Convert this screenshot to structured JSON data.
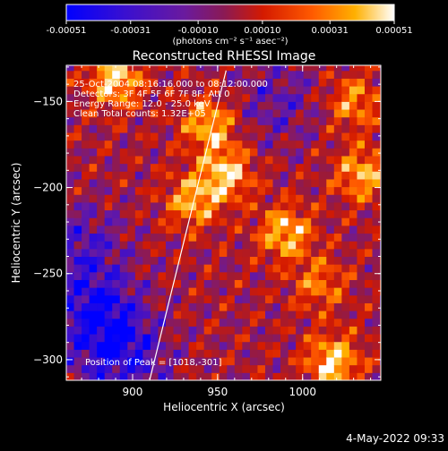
{
  "colorbar": {
    "tick_labels": [
      "-0.00051",
      "-0.00031",
      "-0.00010",
      "0.00010",
      "0.00031",
      "0.00051"
    ],
    "tick_values": [
      -0.00051,
      -0.00031,
      -0.0001,
      0.0001,
      0.00031,
      0.00051
    ],
    "range": [
      -0.00051,
      0.00051
    ],
    "units_label": "(photons cm⁻² s⁻¹ asec⁻²)",
    "colormap": [
      "#0000ff",
      "#4010c8",
      "#6a1a9e",
      "#9a1a3a",
      "#d41a00",
      "#ff5a00",
      "#ffb000",
      "#ffffff"
    ]
  },
  "annotations": {
    "time_range": "25-Oct-2004 08:16:16.000 to 08:12:00.000",
    "detectors": "Detectors: 3F 4F 5F 6F 7F 8F; Att 0",
    "energy_range": "Energy Range: 12.0 - 25.0 keV",
    "clean_counts": "Clean     Total counts: 1.32E+05",
    "peak": "Position of Peak = [1018,-301]"
  },
  "timestamp": "4-May-2022 09:33",
  "chart_data": {
    "type": "heatmap",
    "title": "Reconstructed RHESSI Image",
    "xlabel": "Heliocentric X (arcsec)",
    "ylabel": "Heliocentric Y (arcsec)",
    "xlim": [
      861,
      1046
    ],
    "ylim": [
      -312,
      -129
    ],
    "x_ticks": [
      900,
      950,
      1000
    ],
    "y_ticks": [
      -150,
      -200,
      -250,
      -300
    ],
    "x_tick_labels": [
      "900",
      "950",
      "1000"
    ],
    "y_tick_labels": [
      "−150",
      "−200",
      "−250",
      "−300"
    ],
    "peak_position": [
      1018,
      -301
    ],
    "limb_line": [
      [
        910,
        -312
      ],
      [
        955,
        -132
      ]
    ],
    "bright_sources": [
      {
        "x": 890,
        "y": -137,
        "value": 0.00051
      },
      {
        "x": 945,
        "y": -163,
        "value": 0.00045
      },
      {
        "x": 955,
        "y": -192,
        "value": 0.00048
      },
      {
        "x": 935,
        "y": -208,
        "value": 0.0004
      },
      {
        "x": 990,
        "y": -226,
        "value": 0.00046
      },
      {
        "x": 1035,
        "y": -192,
        "value": 0.00042
      },
      {
        "x": 1030,
        "y": -150,
        "value": 0.00035
      },
      {
        "x": 1010,
        "y": -256,
        "value": 0.0003
      },
      {
        "x": 1018,
        "y": -301,
        "value": 0.00051
      }
    ],
    "dim_regions": [
      {
        "x": 880,
        "y": -275,
        "value": -0.0004
      },
      {
        "x": 895,
        "y": -300,
        "value": -0.0003
      },
      {
        "x": 870,
        "y": -235,
        "value": -0.00025
      },
      {
        "x": 985,
        "y": -150,
        "value": -0.0002
      }
    ]
  }
}
